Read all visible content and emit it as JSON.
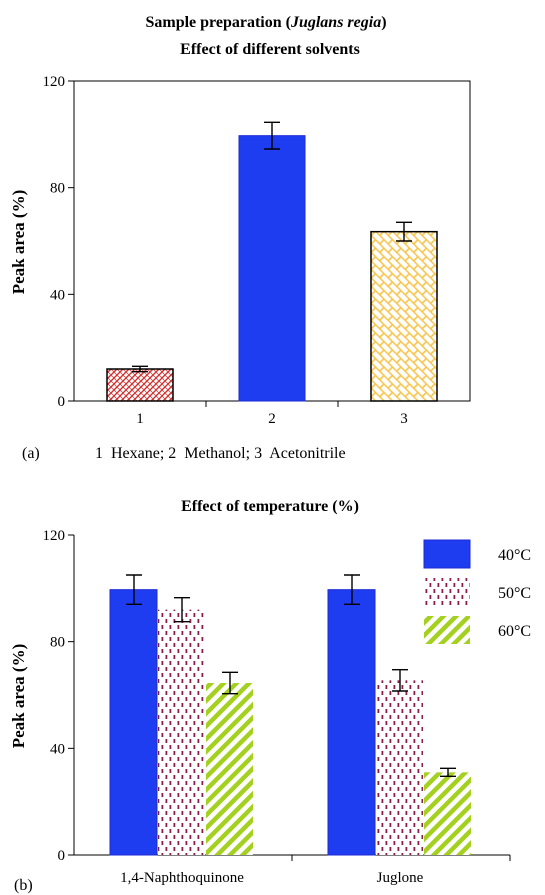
{
  "chart_data": [
    {
      "type": "bar",
      "panel_label": "(a)",
      "title_parts": [
        {
          "text": "Sample preparation (",
          "italic": false
        },
        {
          "text": "Juglans regia",
          "italic": true
        },
        {
          "text": ")",
          "italic": false
        }
      ],
      "subtitle": "Effect of different solvents",
      "ylabel": "Peak area (%)",
      "ylim": [
        0,
        120
      ],
      "yticks": [
        "0",
        "40",
        "80",
        "120"
      ],
      "yticks_values": [
        0,
        40,
        80,
        120
      ],
      "categories": [
        "1",
        "2",
        "3"
      ],
      "values": [
        12,
        99.5,
        63.5
      ],
      "errors": [
        1,
        5,
        3.5
      ],
      "bar_styles": [
        "crosshatch-red",
        "solid-blue",
        "brick-yellow"
      ],
      "caption": "1  Hexane; 2  Methanol; 3  Acetonitrile",
      "grid": false,
      "box": true
    },
    {
      "type": "bar",
      "panel_label": "(b)",
      "title": "Effect of temperature (%)",
      "ylabel": "Peak area (%)",
      "ylim": [
        0,
        120
      ],
      "yticks": [
        "0",
        "40",
        "80",
        "120"
      ],
      "yticks_values": [
        0,
        40,
        80,
        120
      ],
      "categories": [
        "1,4-Naphthoquinone",
        "Juglone"
      ],
      "series": [
        {
          "name": "40°C",
          "values": [
            99.5,
            99.5
          ],
          "errors": [
            5.5,
            5.5
          ],
          "style": "solid-blue"
        },
        {
          "name": "50°C",
          "values": [
            92,
            65.5
          ],
          "errors": [
            4.5,
            4
          ],
          "style": "dotted-maroon"
        },
        {
          "name": "60°C",
          "values": [
            64.5,
            31
          ],
          "errors": [
            4,
            1.5
          ],
          "style": "diagonal-green"
        }
      ],
      "legend_position": "top-right",
      "grid": false,
      "box": false
    }
  ],
  "colors": {
    "blue": "#1f3df0",
    "blue_stroke": "#1d2ad6",
    "maroon": "#8b1a4d",
    "green": "#a4d11f",
    "red": "#d33030",
    "yellow": "#f7c44a"
  }
}
